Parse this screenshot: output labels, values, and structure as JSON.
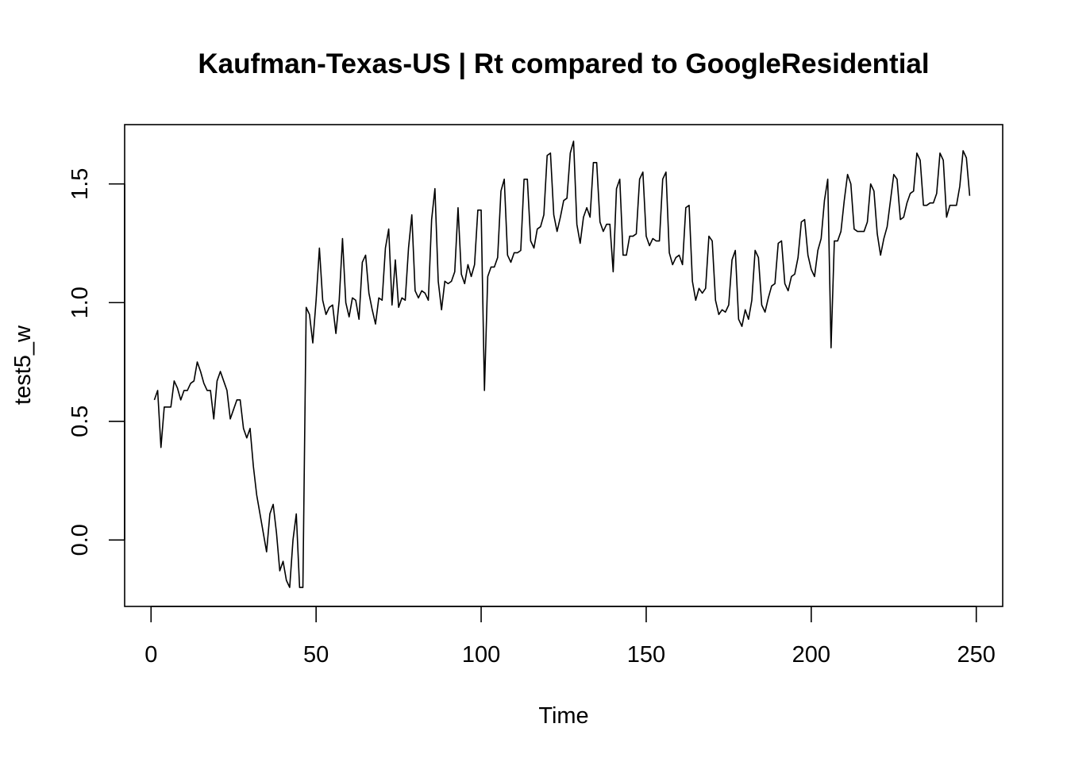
{
  "chart_data": {
    "type": "line",
    "title": "Kaufman-Texas-US | Rt compared to GoogleResidential",
    "xlabel": "Time",
    "ylabel": "test5_w",
    "xlim": [
      -8,
      258
    ],
    "ylim": [
      -0.28,
      1.75
    ],
    "x_ticks": [
      0,
      50,
      100,
      150,
      200,
      250
    ],
    "y_ticks": [
      0.0,
      0.5,
      1.0,
      1.5
    ],
    "x_tick_labels": [
      "0",
      "50",
      "100",
      "150",
      "200",
      "250"
    ],
    "y_tick_labels": [
      "0.0",
      "0.5",
      "1.0",
      "1.5"
    ],
    "grid": false,
    "series": [
      {
        "color": "#000000",
        "x": [
          1,
          2,
          3,
          4,
          5,
          6,
          7,
          8,
          9,
          10,
          11,
          12,
          13,
          14,
          15,
          16,
          17,
          18,
          19,
          20,
          21,
          22,
          23,
          24,
          25,
          26,
          27,
          28,
          29,
          30,
          31,
          32,
          33,
          34,
          35,
          36,
          37,
          38,
          39,
          40,
          41,
          42,
          43,
          44,
          45,
          46,
          47,
          48,
          49,
          50,
          51,
          52,
          53,
          54,
          55,
          56,
          57,
          58,
          59,
          60,
          61,
          62,
          63,
          64,
          65,
          66,
          67,
          68,
          69,
          70,
          71,
          72,
          73,
          74,
          75,
          76,
          77,
          78,
          79,
          80,
          81,
          82,
          83,
          84,
          85,
          86,
          87,
          88,
          89,
          90,
          91,
          92,
          93,
          94,
          95,
          96,
          97,
          98,
          99,
          100,
          101,
          102,
          103,
          104,
          105,
          106,
          107,
          108,
          109,
          110,
          111,
          112,
          113,
          114,
          115,
          116,
          117,
          118,
          119,
          120,
          121,
          122,
          123,
          124,
          125,
          126,
          127,
          128,
          129,
          130,
          131,
          132,
          133,
          134,
          135,
          136,
          137,
          138,
          139,
          140,
          141,
          142,
          143,
          144,
          145,
          146,
          147,
          148,
          149,
          150,
          151,
          152,
          153,
          154,
          155,
          156,
          157,
          158,
          159,
          160,
          161,
          162,
          163,
          164,
          165,
          166,
          167,
          168,
          169,
          170,
          171,
          172,
          173,
          174,
          175,
          176,
          177,
          178,
          179,
          180,
          181,
          182,
          183,
          184,
          185,
          186,
          187,
          188,
          189,
          190,
          191,
          192,
          193,
          194,
          195,
          196,
          197,
          198,
          199,
          200,
          201,
          202,
          203,
          204,
          205,
          206,
          207,
          208,
          209,
          210,
          211,
          212,
          213,
          214,
          215,
          216,
          217,
          218,
          219,
          220,
          221,
          222,
          223,
          224,
          225,
          226,
          227,
          228,
          229,
          230,
          231,
          232,
          233,
          234,
          235,
          236,
          237,
          238,
          239,
          240,
          241,
          242,
          243,
          244,
          245,
          246,
          247,
          248
        ],
        "values": [
          0.59,
          0.63,
          0.39,
          0.56,
          0.56,
          0.56,
          0.67,
          0.64,
          0.59,
          0.63,
          0.63,
          0.66,
          0.67,
          0.75,
          0.71,
          0.66,
          0.63,
          0.63,
          0.51,
          0.67,
          0.71,
          0.67,
          0.63,
          0.51,
          0.55,
          0.59,
          0.59,
          0.47,
          0.43,
          0.47,
          0.31,
          0.19,
          0.11,
          0.03,
          -0.05,
          0.11,
          0.15,
          0.03,
          -0.13,
          -0.09,
          -0.17,
          -0.2,
          0.0,
          0.11,
          -0.2,
          -0.2,
          0.98,
          0.95,
          0.83,
          1.01,
          1.23,
          1.01,
          0.95,
          0.98,
          0.99,
          0.87,
          1.01,
          1.27,
          1.0,
          0.94,
          1.02,
          1.01,
          0.93,
          1.17,
          1.2,
          1.04,
          0.97,
          0.91,
          1.02,
          1.01,
          1.23,
          1.31,
          0.99,
          1.18,
          0.98,
          1.02,
          1.01,
          1.23,
          1.37,
          1.05,
          1.02,
          1.05,
          1.04,
          1.01,
          1.35,
          1.48,
          1.09,
          0.97,
          1.09,
          1.08,
          1.09,
          1.13,
          1.4,
          1.12,
          1.08,
          1.16,
          1.11,
          1.16,
          1.39,
          1.39,
          0.63,
          1.11,
          1.15,
          1.15,
          1.19,
          1.47,
          1.52,
          1.2,
          1.17,
          1.21,
          1.21,
          1.22,
          1.52,
          1.52,
          1.26,
          1.23,
          1.31,
          1.32,
          1.37,
          1.62,
          1.63,
          1.37,
          1.3,
          1.36,
          1.43,
          1.44,
          1.63,
          1.68,
          1.33,
          1.25,
          1.36,
          1.4,
          1.36,
          1.59,
          1.59,
          1.34,
          1.3,
          1.33,
          1.33,
          1.13,
          1.48,
          1.52,
          1.2,
          1.2,
          1.28,
          1.28,
          1.29,
          1.52,
          1.55,
          1.28,
          1.24,
          1.27,
          1.26,
          1.26,
          1.52,
          1.55,
          1.21,
          1.16,
          1.19,
          1.2,
          1.16,
          1.4,
          1.41,
          1.09,
          1.01,
          1.06,
          1.04,
          1.06,
          1.28,
          1.26,
          1.01,
          0.95,
          0.97,
          0.96,
          0.99,
          1.18,
          1.22,
          0.93,
          0.9,
          0.97,
          0.93,
          1.01,
          1.22,
          1.19,
          0.99,
          0.96,
          1.02,
          1.07,
          1.08,
          1.25,
          1.26,
          1.08,
          1.05,
          1.11,
          1.12,
          1.19,
          1.34,
          1.35,
          1.2,
          1.14,
          1.11,
          1.22,
          1.27,
          1.43,
          1.52,
          0.81,
          1.26,
          1.26,
          1.3,
          1.43,
          1.54,
          1.5,
          1.31,
          1.3,
          1.3,
          1.3,
          1.34,
          1.5,
          1.47,
          1.29,
          1.2,
          1.27,
          1.32,
          1.43,
          1.54,
          1.52,
          1.35,
          1.36,
          1.42,
          1.46,
          1.47,
          1.63,
          1.6,
          1.41,
          1.41,
          1.42,
          1.42,
          1.46,
          1.63,
          1.6,
          1.36,
          1.41,
          1.41,
          1.41,
          1.49,
          1.64,
          1.61,
          1.45
        ]
      }
    ]
  }
}
